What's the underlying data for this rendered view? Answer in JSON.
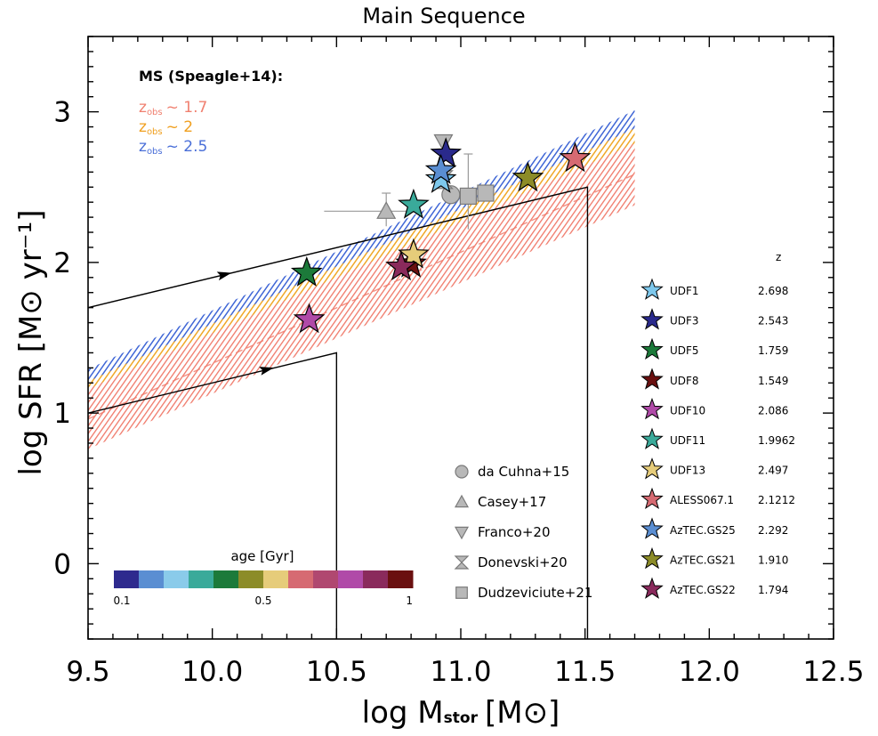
{
  "chart_data": {
    "type": "scatter",
    "title": "Main Sequence",
    "xlabel": "log M",
    "xlabel_sub": "stor",
    "xlabel_unit": "[M⊙]",
    "ylabel": "log SFR [M⊙ yr⁻¹]",
    "xlim": [
      9.5,
      12.5
    ],
    "ylim": [
      -0.5,
      3.5
    ],
    "xticks": [
      "9.5",
      "10.0",
      "10.5",
      "11.0",
      "11.5",
      "12.0",
      "12.5"
    ],
    "yticks": [
      "0",
      "1",
      "2",
      "3"
    ],
    "ms_legend": {
      "title": "MS (Speagle+14):",
      "entries": [
        {
          "label": "z",
          "sub": "obs",
          "value": "~ 1.7",
          "color": "#f08070"
        },
        {
          "label": "z",
          "sub": "obs",
          "value": "~ 2",
          "color": "#f0a020"
        },
        {
          "label": "z",
          "sub": "obs",
          "value": "~ 2.5",
          "color": "#4a6fd8"
        }
      ]
    },
    "bands": [
      {
        "name": "z~2.5",
        "color": "#3f66d6",
        "x": [
          9.5,
          11.7
        ],
        "lower": [
          1.06,
          2.64
        ],
        "upper": [
          1.29,
          3.01
        ]
      },
      {
        "name": "z~2",
        "color": "#f0a828",
        "x": [
          9.5,
          11.7
        ],
        "lower": [
          0.97,
          2.53
        ],
        "upper": [
          1.21,
          2.89
        ]
      },
      {
        "name": "z~1.7",
        "color": "#f07868",
        "x": [
          9.5,
          11.7
        ],
        "lower": [
          0.76,
          2.38
        ],
        "upper": [
          1.16,
          2.79
        ]
      }
    ],
    "tracks": [
      {
        "points": [
          [
            9.5,
            1.0
          ],
          [
            10.5,
            1.4
          ],
          [
            10.5,
            -0.5
          ]
        ],
        "arrow_at": [
          10.22,
          1.29
        ]
      },
      {
        "points": [
          [
            9.5,
            1.7
          ],
          [
            11.51,
            2.5
          ],
          [
            11.51,
            -0.5
          ]
        ],
        "arrow_at": [
          10.05,
          1.92
        ]
      }
    ],
    "stars": [
      {
        "name": "UDF1",
        "z": "2.698",
        "x": 10.92,
        "y": 2.55,
        "color": "#7ec8ec"
      },
      {
        "name": "UDF3",
        "z": "2.543",
        "x": 10.94,
        "y": 2.72,
        "color": "#2a2a8c"
      },
      {
        "name": "UDF5",
        "z": "1.759",
        "x": 10.38,
        "y": 1.93,
        "color": "#1c7a3a"
      },
      {
        "name": "UDF8",
        "z": "1.549",
        "x": 10.8,
        "y": 1.99,
        "color": "#6a1010"
      },
      {
        "name": "UDF10",
        "z": "2.086",
        "x": 10.39,
        "y": 1.62,
        "color": "#b04aa8"
      },
      {
        "name": "UDF11",
        "z": "1.9962",
        "x": 10.81,
        "y": 2.38,
        "color": "#3aaa9a"
      },
      {
        "name": "UDF13",
        "z": "2.497",
        "x": 10.81,
        "y": 2.05,
        "color": "#e6cc7a"
      },
      {
        "name": "ALESS067.1",
        "z": "2.1212",
        "x": 11.46,
        "y": 2.69,
        "color": "#d66a72"
      },
      {
        "name": "AzTEC.GS25",
        "z": "2.292",
        "x": 10.92,
        "y": 2.61,
        "color": "#5a8ed2"
      },
      {
        "name": "AzTEC.GS21",
        "z": "1.910",
        "x": 11.27,
        "y": 2.56,
        "color": "#8c8c28"
      },
      {
        "name": "AzTEC.GS22",
        "z": "1.794",
        "x": 10.76,
        "y": 1.97,
        "color": "#8a2a5c"
      }
    ],
    "star_legend_title": "z",
    "star_legend_z_colors": [
      "#4a6fd8",
      "#4a6fd8",
      "#f08070",
      "#f08070",
      "#f0a020",
      "#f0a020",
      "#4a6fd8",
      "#f0a020",
      "#4a6fd8",
      "#f0a020",
      "#f08070"
    ],
    "literature": [
      {
        "name": "da Cuhna+15",
        "marker": "circle",
        "x": 10.96,
        "y": 2.45
      },
      {
        "name": "Casey+17",
        "marker": "triangle-up",
        "x": 10.7,
        "y": 2.34,
        "xerr": [
          0.25,
          0.1
        ],
        "yerr": [
          0.1,
          0.12
        ]
      },
      {
        "name": "Franco+20",
        "marker": "triangle-down",
        "x": 10.93,
        "y": 2.8
      },
      {
        "name": "Donevski+20",
        "marker": "hourglass",
        "x": 10.93,
        "y": 2.55
      },
      {
        "name": "Dudzeviciute+21",
        "marker": "square",
        "x": 11.03,
        "y": 2.44,
        "yerr": [
          0.22,
          0.28
        ],
        "extra": [
          [
            11.1,
            2.46
          ]
        ]
      }
    ],
    "colorbar": {
      "title": "age [Gyr]",
      "ticks": [
        "0.1",
        "0.5",
        "1"
      ],
      "colors": [
        "#2e2a8e",
        "#5a8ed2",
        "#8acbea",
        "#3aaa9a",
        "#1c7a3a",
        "#8c8c28",
        "#e6cc7a",
        "#d66a72",
        "#b04870",
        "#b04aa8",
        "#8a2a5c",
        "#6a1010"
      ]
    }
  }
}
